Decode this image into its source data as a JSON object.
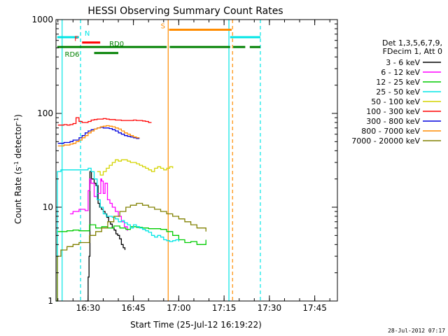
{
  "chart_data": {
    "type": "line",
    "title": "HESSI Observing Summary Count Rates",
    "xlabel": "Start Time (25-Jul-12 16:19:22)",
    "ylabel": "Count Rate (s⁻¹ detector⁻¹)",
    "ylabel_main": "Count Rate (s",
    "ylabel_sup1": "-1",
    "ylabel_mid": " detector",
    "ylabel_sup2": "-1",
    "ylabel_end": ")",
    "y_scale": "log",
    "ylim": [
      1,
      1000
    ],
    "xlim": [
      "16:19:22",
      "17:33:00"
    ],
    "xlim_minutes": [
      979.37,
      1072.5
    ],
    "x_ticks": [
      {
        "label": "16:30",
        "minute": 990
      },
      {
        "label": "16:45",
        "minute": 1005
      },
      {
        "label": "17:00",
        "minute": 1020
      },
      {
        "label": "17:15",
        "minute": 1035
      },
      {
        "label": "17:30",
        "minute": 1050
      },
      {
        "label": "17:45",
        "minute": 1065
      }
    ],
    "y_ticks": [
      {
        "label": "1",
        "value": 1
      },
      {
        "label": "10",
        "value": 10
      },
      {
        "label": "100",
        "value": 100
      },
      {
        "label": "1000",
        "value": 1000
      }
    ],
    "legend_header": [
      "Det 1,3,5,6,7,9,",
      "FDecim 1, Att 0"
    ],
    "legend_position": "right",
    "series": [
      {
        "name": "3 - 6 keV",
        "color": "#000000",
        "points": [
          [
            989.0,
            1.0
          ],
          [
            990.0,
            1.8
          ],
          [
            990.3,
            3.0
          ],
          [
            990.6,
            24
          ],
          [
            991.1,
            20
          ],
          [
            991.6,
            20
          ],
          [
            992.0,
            18
          ],
          [
            992.6,
            17
          ],
          [
            993.3,
            11
          ],
          [
            993.8,
            10
          ],
          [
            994.4,
            9.5
          ],
          [
            995.0,
            9
          ],
          [
            995.6,
            8.5
          ],
          [
            996.2,
            7.8
          ],
          [
            996.8,
            7.0
          ],
          [
            997.4,
            6.6
          ],
          [
            998.0,
            6.0
          ],
          [
            998.6,
            5.7
          ],
          [
            999.2,
            5.2
          ],
          [
            999.8,
            5.0
          ],
          [
            1000.4,
            4.6
          ],
          [
            1001.0,
            4.0
          ],
          [
            1001.6,
            3.7
          ],
          [
            1002.2,
            3.5
          ]
        ]
      },
      {
        "name": "6 - 12 keV",
        "color": "#ff00ff",
        "points": [
          [
            984.0,
            8.5
          ],
          [
            985.0,
            9.0
          ],
          [
            986.0,
            9.0
          ],
          [
            987.0,
            9.5
          ],
          [
            988.0,
            9.5
          ],
          [
            989.0,
            9.2
          ],
          [
            990.0,
            15
          ],
          [
            990.5,
            20
          ],
          [
            991.0,
            18
          ],
          [
            992.0,
            13
          ],
          [
            993.0,
            14
          ],
          [
            994.2,
            20
          ],
          [
            994.5,
            19
          ],
          [
            995.0,
            14
          ],
          [
            995.6,
            18
          ],
          [
            996.4,
            12
          ],
          [
            997.2,
            11
          ],
          [
            998.0,
            10
          ],
          [
            999.0,
            9.0
          ],
          [
            1000.0,
            8.0
          ],
          [
            1001.0,
            7.0
          ],
          [
            1002.0,
            6.2
          ],
          [
            1003.0,
            5.6
          ]
        ]
      },
      {
        "name": "12 - 25 keV",
        "color": "#00cc00",
        "points": [
          [
            979.5,
            1.0
          ],
          [
            979.8,
            5.5
          ],
          [
            981.0,
            5.5
          ],
          [
            983.0,
            5.6
          ],
          [
            985.0,
            5.7
          ],
          [
            987.0,
            5.6
          ],
          [
            989.0,
            5.6
          ],
          [
            990.5,
            6.5
          ],
          [
            992.5,
            6.0
          ],
          [
            994.5,
            6.2
          ],
          [
            996.5,
            6.0
          ],
          [
            998.5,
            6.3
          ],
          [
            1000.5,
            6.0
          ],
          [
            1002.5,
            5.8
          ],
          [
            1004.0,
            6.2
          ],
          [
            1006.0,
            6.1
          ],
          [
            1008.0,
            6.0
          ],
          [
            1010.0,
            5.9
          ],
          [
            1012.0,
            5.9
          ],
          [
            1014.0,
            5.8
          ],
          [
            1016.0,
            5.5
          ],
          [
            1018.0,
            5.0
          ],
          [
            1020.0,
            4.5
          ],
          [
            1022.0,
            4.2
          ],
          [
            1024.0,
            4.3
          ],
          [
            1026.0,
            4.0
          ],
          [
            1029.0,
            4.5
          ]
        ]
      },
      {
        "name": "25 - 50 keV",
        "color": "#00e5e5",
        "points": [
          [
            979.5,
            1.0
          ],
          [
            979.8,
            24
          ],
          [
            981.0,
            25
          ],
          [
            983.0,
            25
          ],
          [
            985.0,
            25
          ],
          [
            987.0,
            25
          ],
          [
            989.0,
            25
          ],
          [
            990.0,
            26
          ],
          [
            991.0,
            24
          ],
          [
            992.0,
            20
          ],
          [
            993.0,
            12
          ],
          [
            994.0,
            10
          ],
          [
            995.0,
            8.5
          ],
          [
            996.0,
            8.0
          ],
          [
            997.0,
            8.0
          ],
          [
            998.0,
            7.8
          ],
          [
            999.0,
            7.5
          ],
          [
            1000.0,
            7.0
          ],
          [
            1001.0,
            7.2
          ],
          [
            1002.0,
            6.8
          ],
          [
            1003.0,
            6.5
          ],
          [
            1004.0,
            6.0
          ],
          [
            1005.0,
            6.5
          ],
          [
            1006.0,
            6.2
          ],
          [
            1007.0,
            6.0
          ],
          [
            1008.0,
            5.8
          ],
          [
            1009.0,
            5.6
          ],
          [
            1010.0,
            5.4
          ],
          [
            1011.0,
            5.0
          ],
          [
            1012.0,
            4.8
          ],
          [
            1013.0,
            5.0
          ],
          [
            1014.0,
            4.8
          ],
          [
            1015.0,
            4.5
          ],
          [
            1016.0,
            4.4
          ],
          [
            1017.0,
            4.3
          ],
          [
            1018.0,
            4.4
          ],
          [
            1019.0,
            4.5
          ],
          [
            1020.0,
            4.3
          ]
        ]
      },
      {
        "name": "50 - 100 keV",
        "color": "#d4d400",
        "points": [
          [
            993.0,
            24
          ],
          [
            994.0,
            22
          ],
          [
            995.0,
            24
          ],
          [
            996.0,
            26
          ],
          [
            997.0,
            28
          ],
          [
            998.0,
            30
          ],
          [
            999.0,
            32
          ],
          [
            1000.0,
            31
          ],
          [
            1001.0,
            32
          ],
          [
            1002.0,
            32
          ],
          [
            1003.0,
            31
          ],
          [
            1004.0,
            30
          ],
          [
            1005.0,
            30
          ],
          [
            1006.0,
            29
          ],
          [
            1007.0,
            28
          ],
          [
            1008.0,
            27
          ],
          [
            1009.0,
            26
          ],
          [
            1010.0,
            25
          ],
          [
            1011.0,
            24
          ],
          [
            1012.0,
            26
          ],
          [
            1013.0,
            27
          ],
          [
            1014.0,
            26
          ],
          [
            1015.0,
            25
          ],
          [
            1016.0,
            26
          ],
          [
            1017.0,
            27
          ],
          [
            1018.0,
            26
          ]
        ]
      },
      {
        "name": "100 - 300 keV",
        "color": "#ff0000",
        "points": [
          [
            980.0,
            75
          ],
          [
            981.0,
            75
          ],
          [
            982.0,
            76
          ],
          [
            983.0,
            75
          ],
          [
            984.0,
            76
          ],
          [
            985.0,
            78
          ],
          [
            986.0,
            90
          ],
          [
            987.0,
            82
          ],
          [
            988.0,
            80
          ],
          [
            989.0,
            80
          ],
          [
            990.0,
            82
          ],
          [
            991.0,
            85
          ],
          [
            992.0,
            86
          ],
          [
            993.0,
            87
          ],
          [
            994.0,
            87
          ],
          [
            995.0,
            88
          ],
          [
            996.0,
            87
          ],
          [
            997.0,
            86
          ],
          [
            998.0,
            86
          ],
          [
            999.0,
            85
          ],
          [
            1000.0,
            85
          ],
          [
            1001.0,
            84
          ],
          [
            1002.0,
            84
          ],
          [
            1003.0,
            84
          ],
          [
            1004.0,
            84
          ],
          [
            1005.0,
            85
          ],
          [
            1006.0,
            84
          ],
          [
            1007.0,
            84
          ],
          [
            1008.0,
            83
          ],
          [
            1009.0,
            82
          ],
          [
            1010.0,
            80
          ],
          [
            1011.0,
            80
          ]
        ]
      },
      {
        "name": "300 - 800 keV",
        "color": "#0000dd",
        "points": [
          [
            980.0,
            48
          ],
          [
            981.0,
            48
          ],
          [
            982.0,
            49
          ],
          [
            983.0,
            49
          ],
          [
            984.0,
            50
          ],
          [
            985.0,
            52
          ],
          [
            986.0,
            52
          ],
          [
            987.0,
            55
          ],
          [
            988.0,
            58
          ],
          [
            989.0,
            62
          ],
          [
            990.0,
            65
          ],
          [
            991.0,
            67
          ],
          [
            992.0,
            68
          ],
          [
            993.0,
            70
          ],
          [
            994.0,
            71
          ],
          [
            995.0,
            70
          ],
          [
            996.0,
            70
          ],
          [
            997.0,
            69
          ],
          [
            998.0,
            67
          ],
          [
            999.0,
            65
          ],
          [
            1000.0,
            62
          ],
          [
            1001.0,
            60
          ],
          [
            1002.0,
            58
          ],
          [
            1003.0,
            57
          ],
          [
            1004.0,
            56
          ],
          [
            1005.0,
            55
          ],
          [
            1006.0,
            54
          ],
          [
            1007.0,
            54
          ]
        ]
      },
      {
        "name": "800 - 7000 keV",
        "color": "#ff8c00",
        "points": [
          [
            980.0,
            45
          ],
          [
            981.0,
            45
          ],
          [
            982.0,
            46
          ],
          [
            983.0,
            46
          ],
          [
            984.0,
            47
          ],
          [
            985.0,
            48
          ],
          [
            986.0,
            50
          ],
          [
            987.0,
            52
          ],
          [
            988.0,
            55
          ],
          [
            989.0,
            58
          ],
          [
            990.0,
            62
          ],
          [
            991.0,
            65
          ],
          [
            992.0,
            68
          ],
          [
            993.0,
            70
          ],
          [
            994.0,
            72
          ],
          [
            995.0,
            73
          ],
          [
            996.0,
            74
          ],
          [
            997.0,
            73
          ],
          [
            998.0,
            72
          ],
          [
            999.0,
            70
          ],
          [
            1000.0,
            68
          ],
          [
            1001.0,
            65
          ],
          [
            1002.0,
            62
          ],
          [
            1003.0,
            60
          ],
          [
            1004.0,
            58
          ],
          [
            1005.0,
            56
          ],
          [
            1006.0,
            55
          ],
          [
            1007.0,
            55
          ]
        ]
      },
      {
        "name": "7000 - 20000 keV",
        "color": "#808000",
        "points": [
          [
            979.5,
            1.0
          ],
          [
            979.8,
            3.0
          ],
          [
            981.0,
            3.5
          ],
          [
            983.0,
            3.8
          ],
          [
            985.0,
            4.0
          ],
          [
            987.0,
            4.2
          ],
          [
            989.0,
            4.2
          ],
          [
            990.5,
            5.0
          ],
          [
            992.5,
            5.5
          ],
          [
            994.5,
            6.0
          ],
          [
            996.5,
            7.0
          ],
          [
            998.5,
            8.0
          ],
          [
            1000.5,
            9.0
          ],
          [
            1002.5,
            10.0
          ],
          [
            1004.0,
            10.5
          ],
          [
            1006.0,
            11.0
          ],
          [
            1008.0,
            10.5
          ],
          [
            1010.0,
            10.0
          ],
          [
            1012.0,
            9.5
          ],
          [
            1014.0,
            9.0
          ],
          [
            1016.0,
            8.5
          ],
          [
            1018.0,
            8.0
          ],
          [
            1020.0,
            7.5
          ],
          [
            1022.0,
            7.0
          ],
          [
            1024.0,
            6.5
          ],
          [
            1026.0,
            6.0
          ],
          [
            1029.0,
            5.5
          ]
        ]
      }
    ],
    "vlines": [
      {
        "minute": 981.4,
        "color": "#00e5e5",
        "dash": false
      },
      {
        "minute": 987.5,
        "color": "#00e5e5",
        "dash": true
      },
      {
        "minute": 1016.5,
        "color": "#ff8c00",
        "dash": false
      },
      {
        "minute": 1036.6,
        "color": "#00e5e5",
        "dash": false
      },
      {
        "minute": 1037.8,
        "color": "#ff8c00",
        "dash": true
      },
      {
        "minute": 1047.0,
        "color": "#00e5e5",
        "dash": true
      }
    ],
    "status_bars": [
      {
        "label": "N",
        "color": "#00e5e5",
        "y": 650,
        "segments": [
          [
            979.8,
            987.0
          ],
          [
            1037.0,
            1047.0
          ]
        ]
      },
      {
        "label": "F",
        "color": "#ff0000",
        "y": 570,
        "segments": [
          [
            988.0,
            994.0
          ]
        ]
      },
      {
        "label": "RD0",
        "color": "#008000",
        "y": 510,
        "segments": [
          [
            979.8,
            1016.0
          ],
          [
            1017.0,
            1037.0
          ],
          [
            1038.0,
            1042.0
          ],
          [
            1043.5,
            1047.0
          ]
        ]
      },
      {
        "label": "RD6",
        "color": "#008000",
        "y": 440,
        "segments": [
          [
            992.0,
            1000.0
          ]
        ]
      },
      {
        "label": "S",
        "color": "#ff8c00",
        "y": 780,
        "segments": [
          [
            1016.8,
            1037.5
          ]
        ]
      }
    ],
    "timestamp": "28-Jul-2012 07:17"
  }
}
